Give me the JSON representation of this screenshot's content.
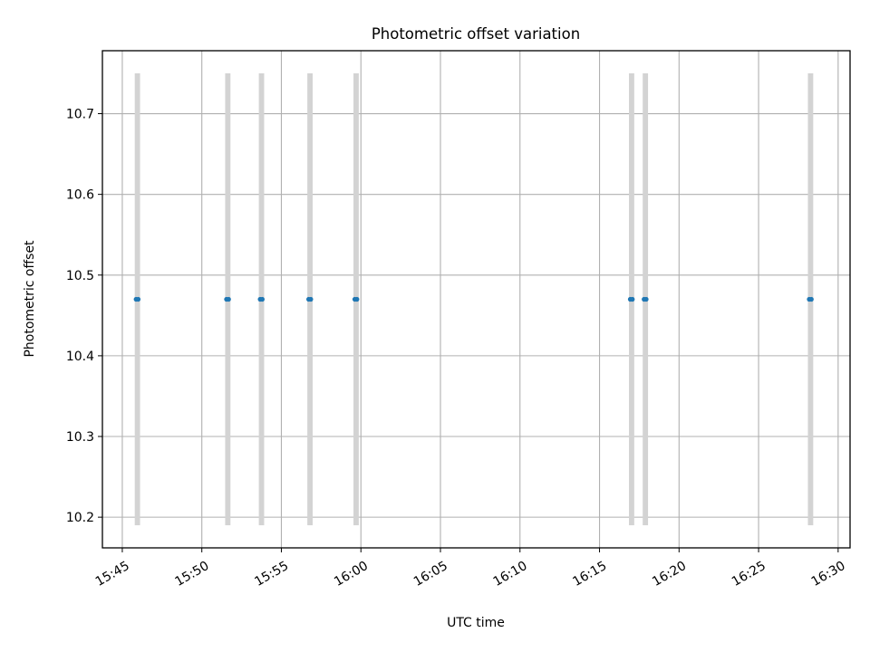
{
  "chart_data": {
    "type": "scatter",
    "title": "Photometric offset variation",
    "xlabel": "UTC time",
    "ylabel": "Photometric offset",
    "xlim": [
      "15:43:45",
      "16:30:45"
    ],
    "ylim": [
      10.162,
      10.778
    ],
    "xticks": [
      "15:45",
      "15:50",
      "15:55",
      "16:00",
      "16:05",
      "16:10",
      "16:15",
      "16:20",
      "16:25",
      "16:30"
    ],
    "yticks": [
      10.2,
      10.3,
      10.4,
      10.5,
      10.6,
      10.7
    ],
    "grid": true,
    "band_range": [
      10.19,
      10.75
    ],
    "bands": [
      {
        "start": "15:45:47",
        "end": "15:46:07"
      },
      {
        "start": "15:51:28",
        "end": "15:51:48"
      },
      {
        "start": "15:53:35",
        "end": "15:53:55"
      },
      {
        "start": "15:56:38",
        "end": "15:56:58"
      },
      {
        "start": "15:59:32",
        "end": "15:59:52"
      },
      {
        "start": "16:16:51",
        "end": "16:17:11"
      },
      {
        "start": "16:17:43",
        "end": "16:18:03"
      },
      {
        "start": "16:28:06",
        "end": "16:28:26"
      }
    ],
    "series": [
      {
        "color": "#1f77b4",
        "points": [
          [
            "15:45:52",
            10.47
          ],
          [
            "15:46:00",
            10.47
          ],
          [
            "15:51:33",
            10.47
          ],
          [
            "15:51:41",
            10.47
          ],
          [
            "15:53:40",
            10.47
          ],
          [
            "15:53:48",
            10.47
          ],
          [
            "15:56:43",
            10.47
          ],
          [
            "15:56:51",
            10.47
          ],
          [
            "15:59:37",
            10.47
          ],
          [
            "15:59:45",
            10.47
          ],
          [
            "16:16:56",
            10.47
          ],
          [
            "16:17:04",
            10.47
          ],
          [
            "16:17:48",
            10.47
          ],
          [
            "16:17:56",
            10.47
          ],
          [
            "16:28:11",
            10.47
          ],
          [
            "16:28:19",
            10.47
          ]
        ]
      }
    ],
    "band_color": "#d3d3d3",
    "grid_color": "#b0b0b0"
  }
}
